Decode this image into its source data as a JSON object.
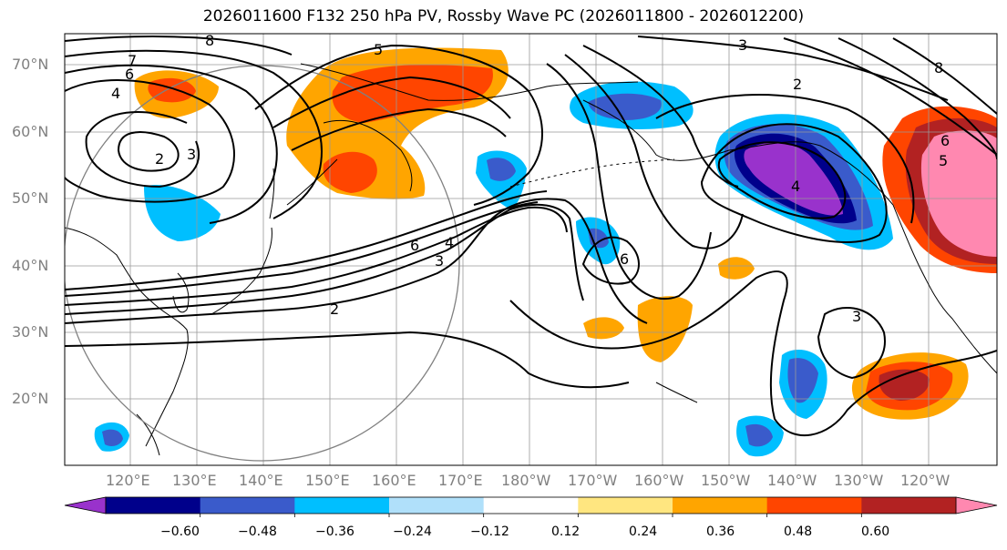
{
  "title": "2026011600 F132 250 hPa PV, Rossby Wave PC (2026011800 - 2026012200)",
  "lat_labels": [
    "70°N",
    "60°N",
    "50°N",
    "40°N",
    "30°N",
    "20°N"
  ],
  "lon_labels": [
    "120°E",
    "130°E",
    "140°E",
    "150°E",
    "160°E",
    "170°E",
    "180°W",
    "170°W",
    "160°W",
    "150°W",
    "140°W",
    "130°W",
    "120°W"
  ],
  "colorbar": {
    "ticks": [
      "−0.60",
      "−0.48",
      "−0.36",
      "−0.24",
      "−0.12",
      "0.12",
      "0.24",
      "0.36",
      "0.48",
      "0.60"
    ],
    "colors": [
      "#9932CC",
      "#00008B",
      "#3A5BCB",
      "#00BFFF",
      "#B0E0FA",
      "#FFFFFF",
      "#FFE680",
      "#FFA500",
      "#FF4500",
      "#B22222",
      "#FF88B0"
    ]
  },
  "pv_contour_labels": [
    "8",
    "7",
    "6",
    "4",
    "2",
    "3",
    "5",
    "3",
    "2",
    "4",
    "6",
    "4",
    "3",
    "2",
    "6",
    "3",
    "8",
    "5",
    "6"
  ],
  "colors": {
    "neg_strong": "#9932CC",
    "neg_dark": "#00008B",
    "neg_mid": "#3A5BCB",
    "neg_light": "#00BFFF",
    "pos_light": "#FFA500",
    "pos_mid": "#FF4500",
    "pos_dark": "#B22222",
    "pos_strong": "#FF88B0"
  }
}
